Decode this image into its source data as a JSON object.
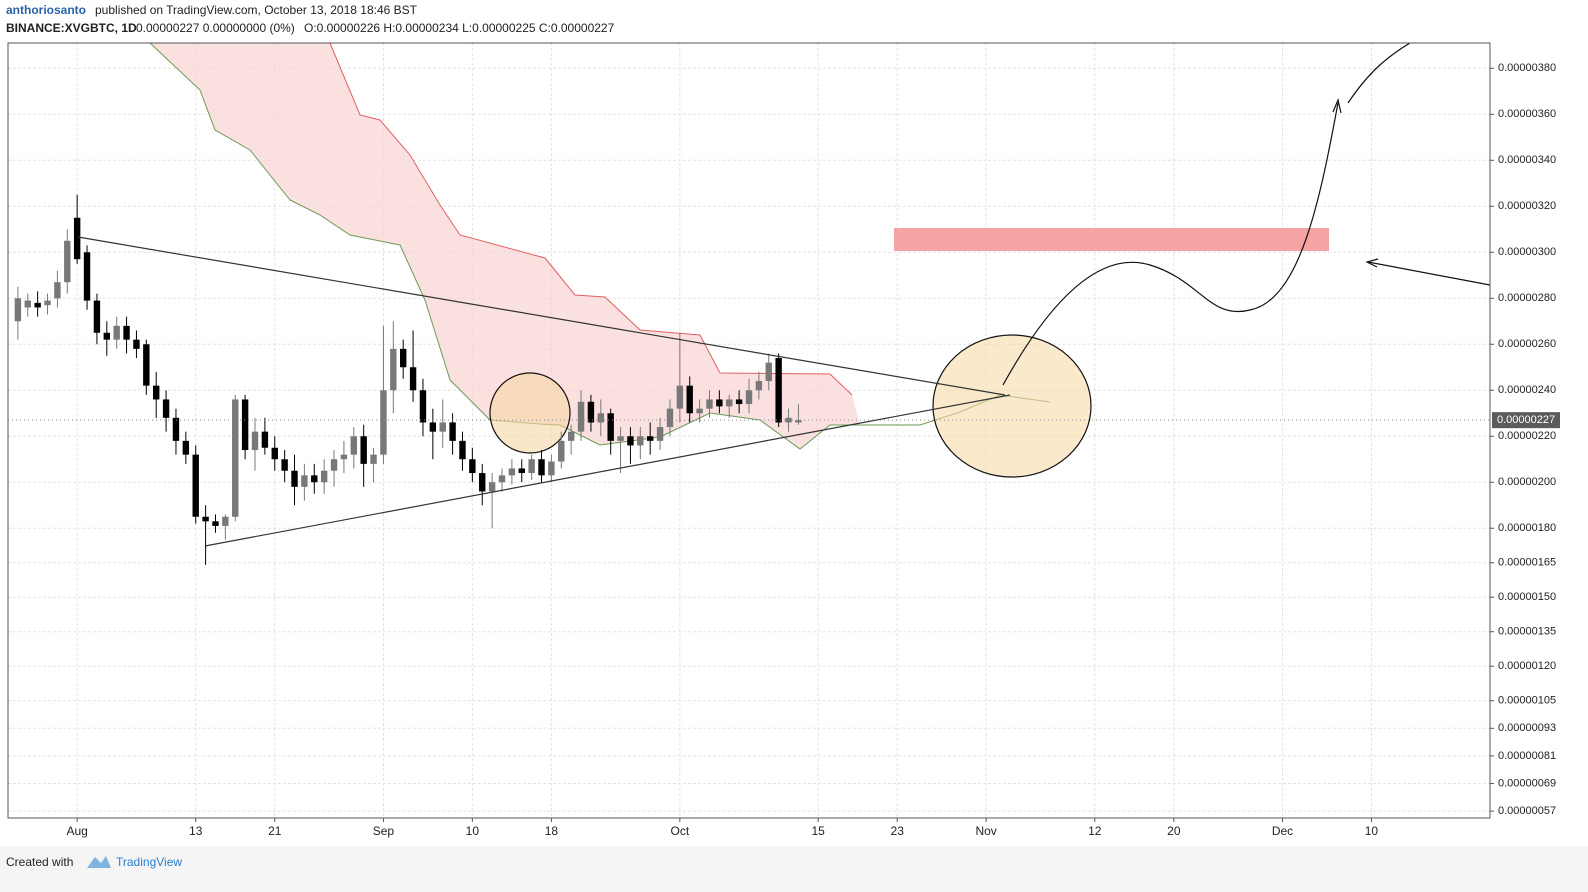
{
  "header": {
    "author": "anthoriosanto",
    "published": "published on TradingView.com, October 13, 2018 18:46 BST",
    "symbol": "BINANCE:XVGBTC, 1D",
    "change": "0.00000227 0.00000000 (0%)",
    "ohlc": "O:0.00000226 H:0.00000234 L:0.00000225 C:0.00000227"
  },
  "footer": {
    "created": "Created with",
    "brand": "TradingView"
  },
  "chart_data": {
    "type": "candlestick",
    "x": [
      "2018-07-26",
      "2018-07-27",
      "2018-07-28",
      "2018-07-29",
      "2018-07-30",
      "2018-07-31",
      "2018-08-01",
      "2018-08-02",
      "2018-08-03",
      "2018-08-04",
      "2018-08-05",
      "2018-08-06",
      "2018-08-07",
      "2018-08-08",
      "2018-08-09",
      "2018-08-10",
      "2018-08-11",
      "2018-08-12",
      "2018-08-13",
      "2018-08-14",
      "2018-08-15",
      "2018-08-16",
      "2018-08-17",
      "2018-08-18",
      "2018-08-19",
      "2018-08-20",
      "2018-08-21",
      "2018-08-22",
      "2018-08-23",
      "2018-08-24",
      "2018-08-25",
      "2018-08-26",
      "2018-08-27",
      "2018-08-28",
      "2018-08-29",
      "2018-08-30",
      "2018-08-31",
      "2018-09-01",
      "2018-09-02",
      "2018-09-03",
      "2018-09-04",
      "2018-09-05",
      "2018-09-06",
      "2018-09-07",
      "2018-09-08",
      "2018-09-09",
      "2018-09-10",
      "2018-09-11",
      "2018-09-12",
      "2018-09-13",
      "2018-09-14",
      "2018-09-15",
      "2018-09-16",
      "2018-09-17",
      "2018-09-18",
      "2018-09-19",
      "2018-09-20",
      "2018-09-21",
      "2018-09-22",
      "2018-09-23",
      "2018-09-24",
      "2018-09-25",
      "2018-09-26",
      "2018-09-27",
      "2018-09-28",
      "2018-09-29",
      "2018-09-30",
      "2018-10-01",
      "2018-10-02",
      "2018-10-03",
      "2018-10-04",
      "2018-10-05",
      "2018-10-06",
      "2018-10-07",
      "2018-10-08",
      "2018-10-09",
      "2018-10-10",
      "2018-10-11",
      "2018-10-12",
      "2018-10-13"
    ],
    "open": [
      2.7e-06,
      2.76e-06,
      2.78e-06,
      2.77e-06,
      2.8e-06,
      2.87e-06,
      3.15e-06,
      3e-06,
      2.79e-06,
      2.65e-06,
      2.62e-06,
      2.68e-06,
      2.62e-06,
      2.6e-06,
      2.42e-06,
      2.36e-06,
      2.28e-06,
      2.18e-06,
      2.12e-06,
      1.85e-06,
      1.83e-06,
      1.81e-06,
      1.85e-06,
      2.36e-06,
      2.14e-06,
      2.22e-06,
      2.15e-06,
      2.1e-06,
      2.05e-06,
      1.98e-06,
      2.03e-06,
      2e-06,
      2.05e-06,
      2.1e-06,
      2.12e-06,
      2.2e-06,
      2.08e-06,
      2.12e-06,
      2.4e-06,
      2.58e-06,
      2.5e-06,
      2.4e-06,
      2.26e-06,
      2.22e-06,
      2.26e-06,
      2.18e-06,
      2.1e-06,
      2.04e-06,
      1.96e-06,
      2e-06,
      2.03e-06,
      2.06e-06,
      2.04e-06,
      2.1e-06,
      2.03e-06,
      2.09e-06,
      2.18e-06,
      2.22e-06,
      2.35e-06,
      2.26e-06,
      2.3e-06,
      2.18e-06,
      2.2e-06,
      2.16e-06,
      2.2e-06,
      2.18e-06,
      2.24e-06,
      2.32e-06,
      2.42e-06,
      2.3e-06,
      2.32e-06,
      2.36e-06,
      2.33e-06,
      2.36e-06,
      2.34e-06,
      2.4e-06,
      2.44e-06,
      2.54e-06,
      2.26e-06,
      2.26e-06
    ],
    "high": [
      2.85e-06,
      2.82e-06,
      2.83e-06,
      2.82e-06,
      2.92e-06,
      3.1e-06,
      3.25e-06,
      3.03e-06,
      2.82e-06,
      2.7e-06,
      2.72e-06,
      2.72e-06,
      2.66e-06,
      2.62e-06,
      2.48e-06,
      2.4e-06,
      2.32e-06,
      2.22e-06,
      2.16e-06,
      1.9e-06,
      1.86e-06,
      1.86e-06,
      2.38e-06,
      2.38e-06,
      2.28e-06,
      2.28e-06,
      2.2e-06,
      2.14e-06,
      2.12e-06,
      2.08e-06,
      2.08e-06,
      2.1e-06,
      2.14e-06,
      2.18e-06,
      2.24e-06,
      2.25e-06,
      2.15e-06,
      2.68e-06,
      2.7e-06,
      2.62e-06,
      2.66e-06,
      2.45e-06,
      2.32e-06,
      2.36e-06,
      2.3e-06,
      2.22e-06,
      2.15e-06,
      2.08e-06,
      2.04e-06,
      2.06e-06,
      2.1e-06,
      2.1e-06,
      2.12e-06,
      2.14e-06,
      2.12e-06,
      2.22e-06,
      2.25e-06,
      2.4e-06,
      2.38e-06,
      2.36e-06,
      2.32e-06,
      2.24e-06,
      2.24e-06,
      2.24e-06,
      2.26e-06,
      2.28e-06,
      2.36e-06,
      2.65e-06,
      2.46e-06,
      2.36e-06,
      2.4e-06,
      2.4e-06,
      2.38e-06,
      2.4e-06,
      2.45e-06,
      2.48e-06,
      2.56e-06,
      2.56e-06,
      2.32e-06,
      2.34e-06
    ],
    "low": [
      2.62e-06,
      2.72e-06,
      2.72e-06,
      2.73e-06,
      2.76e-06,
      2.82e-06,
      2.95e-06,
      2.75e-06,
      2.6e-06,
      2.55e-06,
      2.58e-06,
      2.56e-06,
      2.54e-06,
      2.38e-06,
      2.28e-06,
      2.22e-06,
      2.12e-06,
      2.08e-06,
      1.82e-06,
      1.64e-06,
      1.78e-06,
      1.75e-06,
      1.83e-06,
      2.1e-06,
      2.05e-06,
      2.12e-06,
      2.05e-06,
      2e-06,
      1.9e-06,
      1.92e-06,
      1.95e-06,
      1.95e-06,
      1.98e-06,
      2.04e-06,
      2.06e-06,
      1.98e-06,
      2e-06,
      2.08e-06,
      2.3e-06,
      2.45e-06,
      2.35e-06,
      2.2e-06,
      2.1e-06,
      2.15e-06,
      2.12e-06,
      2.05e-06,
      2e-06,
      1.9e-06,
      1.8e-06,
      1.96e-06,
      1.99e-06,
      2e-06,
      2.01e-06,
      2e-06,
      2e-06,
      2.06e-06,
      2.12e-06,
      2.18e-06,
      2.22e-06,
      2.2e-06,
      2.12e-06,
      2.04e-06,
      2.08e-06,
      2.1e-06,
      2.12e-06,
      2.14e-06,
      2.2e-06,
      2.26e-06,
      2.26e-06,
      2.26e-06,
      2.28e-06,
      2.3e-06,
      2.28e-06,
      2.3e-06,
      2.3e-06,
      2.36e-06,
      2.4e-06,
      2.24e-06,
      2.22e-06,
      2.25e-06
    ],
    "close": [
      2.8e-06,
      2.79e-06,
      2.76e-06,
      2.79e-06,
      2.87e-06,
      3.05e-06,
      2.97e-06,
      2.79e-06,
      2.65e-06,
      2.62e-06,
      2.68e-06,
      2.62e-06,
      2.58e-06,
      2.42e-06,
      2.36e-06,
      2.28e-06,
      2.18e-06,
      2.12e-06,
      1.85e-06,
      1.83e-06,
      1.81e-06,
      1.85e-06,
      2.36e-06,
      2.14e-06,
      2.22e-06,
      2.15e-06,
      2.1e-06,
      2.05e-06,
      1.98e-06,
      2.03e-06,
      2e-06,
      2.05e-06,
      2.1e-06,
      2.12e-06,
      2.2e-06,
      2.08e-06,
      2.12e-06,
      2.4e-06,
      2.58e-06,
      2.5e-06,
      2.4e-06,
      2.26e-06,
      2.22e-06,
      2.26e-06,
      2.18e-06,
      2.1e-06,
      2.04e-06,
      1.96e-06,
      2e-06,
      2.03e-06,
      2.06e-06,
      2.04e-06,
      2.1e-06,
      2.03e-06,
      2.09e-06,
      2.18e-06,
      2.22e-06,
      2.35e-06,
      2.26e-06,
      2.3e-06,
      2.18e-06,
      2.2e-06,
      2.16e-06,
      2.2e-06,
      2.18e-06,
      2.24e-06,
      2.32e-06,
      2.42e-06,
      2.3e-06,
      2.32e-06,
      2.36e-06,
      2.33e-06,
      2.36e-06,
      2.34e-06,
      2.4e-06,
      2.44e-06,
      2.52e-06,
      2.26e-06,
      2.28e-06,
      2.27e-06
    ],
    "up_color": "#787878",
    "down_color": "#000000",
    "last_price": {
      "value": 2.27e-06,
      "label": "0.00000227"
    },
    "xlim": [
      "2018-07-25",
      "2018-12-22"
    ],
    "xticks": [
      {
        "value": "2018-08-01",
        "label": "Aug"
      },
      {
        "value": "2018-08-13",
        "label": "13"
      },
      {
        "value": "2018-08-21",
        "label": "21"
      },
      {
        "value": "2018-09-01",
        "label": "Sep"
      },
      {
        "value": "2018-09-10",
        "label": "10"
      },
      {
        "value": "2018-09-18",
        "label": "18"
      },
      {
        "value": "2018-10-01",
        "label": "Oct"
      },
      {
        "value": "2018-10-15",
        "label": "15"
      },
      {
        "value": "2018-10-23",
        "label": "23"
      },
      {
        "value": "2018-11-01",
        "label": "Nov"
      },
      {
        "value": "2018-11-12",
        "label": "12"
      },
      {
        "value": "2018-11-20",
        "label": "20"
      },
      {
        "value": "2018-12-01",
        "label": "Dec"
      },
      {
        "value": "2018-12-10",
        "label": "10"
      }
    ],
    "ylim": [
      5.4e-07,
      3.91e-06
    ],
    "yticks": [
      {
        "value": 3.8e-06,
        "label": "0.00000380"
      },
      {
        "value": 3.6e-06,
        "label": "0.00000360"
      },
      {
        "value": 3.4e-06,
        "label": "0.00000340"
      },
      {
        "value": 3.2e-06,
        "label": "0.00000320"
      },
      {
        "value": 3e-06,
        "label": "0.00000300"
      },
      {
        "value": 2.8e-06,
        "label": "0.00000280"
      },
      {
        "value": 2.6e-06,
        "label": "0.00000260"
      },
      {
        "value": 2.4e-06,
        "label": "0.00000240"
      },
      {
        "value": 2.2e-06,
        "label": "0.00000220"
      },
      {
        "value": 2e-06,
        "label": "0.00000200"
      },
      {
        "value": 1.8e-06,
        "label": "0.00000180"
      },
      {
        "value": 1.65e-06,
        "label": "0.00000165"
      },
      {
        "value": 1.5e-06,
        "label": "0.00000150"
      },
      {
        "value": 1.35e-06,
        "label": "0.00000135"
      },
      {
        "value": 1.2e-06,
        "label": "0.00000120"
      },
      {
        "value": 1.05e-06,
        "label": "0.00000105"
      },
      {
        "value": 9.3e-07,
        "label": "0.00000093"
      },
      {
        "value": 8.1e-07,
        "label": "0.00000081"
      },
      {
        "value": 6.9e-07,
        "label": "0.00000069"
      },
      {
        "value": 5.7e-07,
        "label": "0.00000057"
      }
    ],
    "grid": true
  }
}
